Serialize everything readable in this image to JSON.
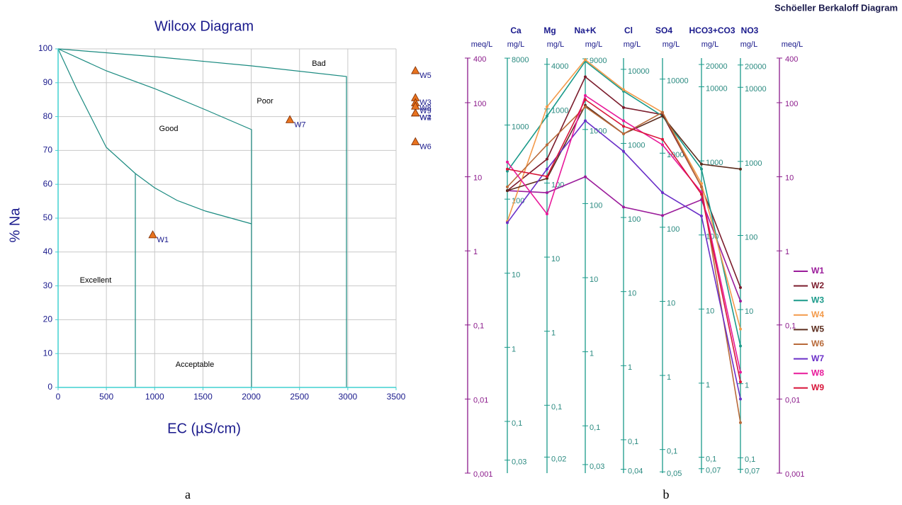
{
  "captions": [
    "a",
    "b"
  ],
  "chart_data": [
    {
      "type": "scatter",
      "title": "Wilcox Diagram",
      "x_label": "EC (µS/cm)",
      "y_label": "% Na",
      "xlim": [
        0,
        3500
      ],
      "xticks": [
        0,
        500,
        1000,
        1500,
        2000,
        2500,
        3000,
        3500
      ],
      "ylim": [
        0,
        100
      ],
      "yticks": [
        0,
        10,
        20,
        30,
        40,
        50,
        60,
        70,
        80,
        90,
        100
      ],
      "grid": true,
      "regions": [
        "Bad",
        "Poor",
        "Good",
        "Excellent",
        "Acceptable"
      ],
      "color": "#e8731f",
      "point_labels": [
        "W1",
        "W2",
        "W3",
        "W4",
        "W5",
        "W6",
        "W7",
        "W8",
        "W9"
      ],
      "x": [
        980,
        3700,
        3700,
        3700,
        3700,
        3700,
        2400,
        3700,
        3700
      ],
      "values": [
        45,
        81,
        85.5,
        81,
        93.5,
        72.5,
        79,
        84,
        83
      ]
    },
    {
      "type": "line",
      "title": "Schöeller Berkaloff Diagram",
      "y_label": "meq/L",
      "log_scale": true,
      "ylim": [
        0.001,
        400
      ],
      "yticks": [
        400,
        100,
        10,
        1,
        {
          "value": 0.1,
          "label": "0,1"
        },
        {
          "value": 0.01,
          "label": "0,01"
        },
        {
          "value": 0.001,
          "label": "0,001"
        }
      ],
      "categories": [
        "Ca",
        "Mg",
        "Na+K",
        "Cl",
        "SO4",
        "HCO3+CO3",
        "NO3"
      ],
      "axes": [
        {
          "unit": "mg/L",
          "ylim": [
            0.02004,
            8016
          ],
          "yticks": [
            8000,
            1000,
            100,
            10,
            1,
            {
              "value": 0.1,
              "label": "0,1"
            },
            {
              "value": 0.03,
              "label": "0,03"
            }
          ]
        },
        {
          "unit": "mg/L",
          "ylim": [
            0.01215,
            4860
          ],
          "yticks": [
            4000,
            1000,
            100,
            10,
            1,
            {
              "value": 0.1,
              "label": "0,1"
            },
            {
              "value": 0.02,
              "label": "0,02"
            }
          ]
        },
        {
          "unit": "mg/L",
          "ylim": [
            0.023,
            9200
          ],
          "yticks": [
            9000,
            1000,
            100,
            10,
            1,
            {
              "value": 0.1,
              "label": "0,1"
            },
            {
              "value": 0.03,
              "label": "0,03"
            }
          ]
        },
        {
          "unit": "mg/L",
          "ylim": [
            0.03545,
            14180
          ],
          "yticks": [
            10000,
            1000,
            100,
            10,
            1,
            {
              "value": 0.1,
              "label": "0,1"
            },
            {
              "value": 0.04,
              "label": "0,04"
            }
          ]
        },
        {
          "unit": "mg/L",
          "ylim": [
            0.04803,
            19212
          ],
          "yticks": [
            10000,
            1000,
            100,
            10,
            1,
            {
              "value": 0.1,
              "label": "0,1"
            },
            {
              "value": 0.05,
              "label": "0,05"
            }
          ]
        },
        {
          "unit": "mg/L",
          "ylim": [
            0.06102,
            24408
          ],
          "yticks": [
            20000,
            10000,
            1000,
            100,
            10,
            1,
            {
              "value": 0.1,
              "label": "0,1"
            },
            {
              "value": 0.07,
              "label": "0,07"
            }
          ]
        },
        {
          "unit": "mg/L",
          "ylim": [
            0.062,
            24800
          ],
          "yticks": [
            20000,
            10000,
            1000,
            100,
            10,
            1,
            {
              "value": 0.1,
              "label": "0,1"
            },
            {
              "value": 0.07,
              "label": "0,07"
            }
          ]
        }
      ],
      "series": [
        {
          "name": "W1",
          "color": "#9b1c9b",
          "values": [
            6.5,
            6.1,
            10,
            3.9,
            3.0,
            4.9,
            0.21
          ]
        },
        {
          "name": "W2",
          "color": "#7b1c2c",
          "values": [
            6.5,
            17.3,
            223,
            86,
            69,
            7.3,
            0.32
          ]
        },
        {
          "name": "W3",
          "color": "#1a9a8a",
          "values": [
            11.9,
            66,
            362,
            143,
            66,
            12.7,
            0.052
          ]
        },
        {
          "name": "W4",
          "color": "#f39a4a",
          "values": [
            2.5,
            88,
            380,
            150,
            74,
            8.1,
            0.088
          ]
        },
        {
          "name": "W5",
          "color": "#5c2d1e",
          "values": [
            6.5,
            9.5,
            92,
            38,
            66,
            14.8,
            12.7
          ]
        },
        {
          "name": "W6",
          "color": "#b86a3a",
          "values": [
            7.3,
            27,
            88,
            38,
            74,
            7.3,
            0.0048
          ]
        },
        {
          "name": "W7",
          "color": "#6a2fc8",
          "values": [
            2.4,
            12.7,
            57,
            22,
            6.1,
            2.95,
            0.01
          ]
        },
        {
          "name": "W8",
          "color": "#e8199a",
          "values": [
            15.8,
            3.15,
            125,
            57,
            27,
            6.2,
            0.023
          ]
        },
        {
          "name": "W9",
          "color": "#d8163a",
          "values": [
            12.7,
            10.1,
            110,
            48,
            32,
            5.8,
            0.017
          ]
        }
      ]
    }
  ]
}
